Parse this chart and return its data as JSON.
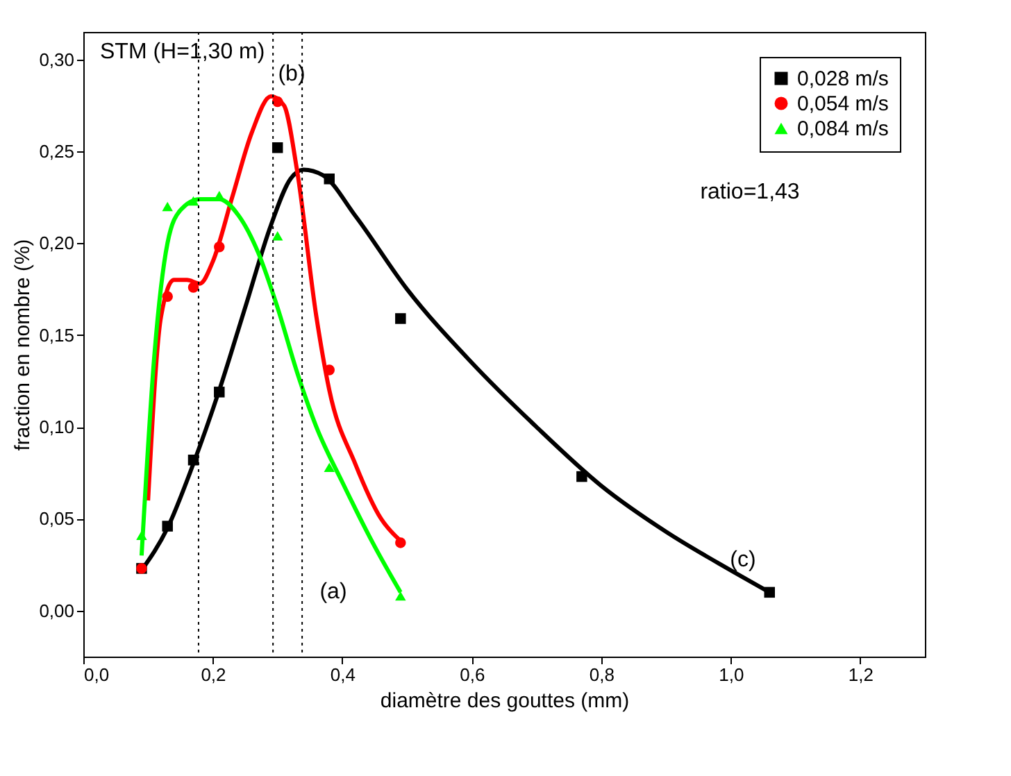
{
  "chart_data": {
    "type": "line",
    "xlabel": "diamètre des gouttes (mm)",
    "ylabel": "fraction en nombre (%)",
    "xlim": [
      0,
      1.3
    ],
    "ylim": [
      -0.025,
      0.315
    ],
    "xticks": [
      {
        "value": 0,
        "label": "0,0"
      },
      {
        "value": 0.2,
        "label": "0,2"
      },
      {
        "value": 0.4,
        "label": "0,4"
      },
      {
        "value": 0.6,
        "label": "0,6"
      },
      {
        "value": 0.8,
        "label": "0,8"
      },
      {
        "value": 1.0,
        "label": "1,0"
      },
      {
        "value": 1.2,
        "label": "1,2"
      }
    ],
    "yticks": [
      {
        "value": 0,
        "label": "0,00"
      },
      {
        "value": 0.05,
        "label": "0,05"
      },
      {
        "value": 0.1,
        "label": "0,10"
      },
      {
        "value": 0.15,
        "label": "0,15"
      },
      {
        "value": 0.2,
        "label": "0,20"
      },
      {
        "value": 0.25,
        "label": "0,25"
      },
      {
        "value": 0.3,
        "label": "0,30"
      }
    ],
    "grid": false,
    "legend": "top right",
    "series": [
      {
        "name": "0,028 m/s",
        "type": "scatter",
        "marker": "square",
        "color": "#000000",
        "x": [
          0.09,
          0.13,
          0.17,
          0.21,
          0.3,
          0.38,
          0.49,
          0.77,
          1.06
        ],
        "values": [
          0.023,
          0.046,
          0.082,
          0.119,
          0.252,
          0.235,
          0.159,
          0.073,
          0.01
        ]
      },
      {
        "name": "0,054 m/s",
        "type": "scatter",
        "marker": "circle",
        "color": "#ff0000",
        "x": [
          0.09,
          0.13,
          0.17,
          0.21,
          0.3,
          0.38,
          0.49
        ],
        "values": [
          0.023,
          0.171,
          0.176,
          0.198,
          0.277,
          0.131,
          0.037
        ]
      },
      {
        "name": "0,084 m/s",
        "type": "scatter",
        "marker": "triangle",
        "color": "#00ff00",
        "x": [
          0.09,
          0.13,
          0.17,
          0.21,
          0.3,
          0.38,
          0.49
        ],
        "values": [
          0.041,
          0.22,
          0.223,
          0.226,
          0.204,
          0.078,
          0.008
        ]
      },
      {
        "color": "#000000",
        "x": [
          0.09,
          0.13,
          0.17,
          0.21,
          0.25,
          0.29,
          0.32,
          0.34,
          0.37,
          0.42,
          0.5,
          0.6,
          0.7,
          0.8,
          0.9,
          1.0,
          1.06
        ],
        "values": [
          0.022,
          0.045,
          0.08,
          0.12,
          0.165,
          0.21,
          0.235,
          0.24,
          0.237,
          0.215,
          0.175,
          0.135,
          0.1,
          0.068,
          0.043,
          0.022,
          0.01
        ]
      },
      {
        "color": "#ff0000",
        "x": [
          0.1,
          0.12,
          0.14,
          0.16,
          0.18,
          0.2,
          0.23,
          0.26,
          0.29,
          0.31,
          0.33,
          0.36,
          0.38,
          0.42,
          0.46,
          0.49
        ],
        "values": [
          0.06,
          0.16,
          0.18,
          0.18,
          0.178,
          0.19,
          0.225,
          0.26,
          0.28,
          0.275,
          0.24,
          0.16,
          0.12,
          0.08,
          0.05,
          0.038
        ]
      },
      {
        "color": "#00ff00",
        "x": [
          0.09,
          0.11,
          0.13,
          0.15,
          0.18,
          0.21,
          0.24,
          0.27,
          0.3,
          0.33,
          0.36,
          0.4,
          0.45,
          0.49
        ],
        "values": [
          0.03,
          0.14,
          0.2,
          0.218,
          0.224,
          0.224,
          0.215,
          0.195,
          0.165,
          0.13,
          0.1,
          0.07,
          0.035,
          0.01
        ]
      }
    ],
    "ref_lines": [
      {
        "axis": "x",
        "value": 0.178,
        "line_style": "dotted",
        "color": "#000000"
      },
      {
        "axis": "x",
        "value": 0.293,
        "line_style": "dotted",
        "color": "#000000"
      },
      {
        "axis": "x",
        "value": 0.338,
        "line_style": "dotted",
        "color": "#000000"
      }
    ],
    "annotations": [
      "STM  (H=1,30 m)",
      "ratio=1,43",
      "(a)",
      "(b)",
      "(c)"
    ]
  }
}
